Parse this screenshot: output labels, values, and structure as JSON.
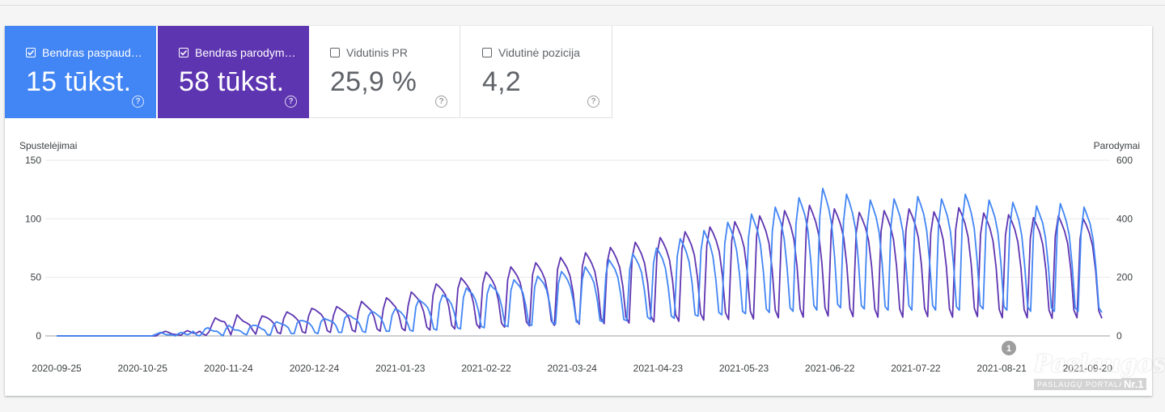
{
  "metrics": [
    {
      "label": "Bendras paspaud…",
      "value": "15 tūkst.",
      "checked": true,
      "color": "#4285f4"
    },
    {
      "label": "Bendras parodym…",
      "value": "58 tūkst.",
      "checked": true,
      "color": "#5e35b1"
    },
    {
      "label": "Vidutinis PR",
      "value": "25,9 %",
      "checked": false,
      "color": "#ffffff"
    },
    {
      "label": "Vidutinė pozicija",
      "value": "4,2",
      "checked": false,
      "color": "#ffffff"
    }
  ],
  "help_glyph": "?",
  "annotation": "1",
  "watermark": {
    "brand": "Paslaugos.lt",
    "tagline": "PASLAUGŲ PORTALAS",
    "rank": "Nr.1"
  },
  "chart_data": {
    "type": "line",
    "title": "",
    "ylabel_left": "Spustelėjimai",
    "ylabel_right": "Parodymai",
    "y_left_ticks": [
      0,
      50,
      100,
      150
    ],
    "y_right_ticks": [
      0,
      200,
      400,
      600
    ],
    "ylim_left": [
      0,
      150
    ],
    "ylim_right": [
      0,
      600
    ],
    "x_tick_labels": [
      "2020-09-25",
      "2020-10-25",
      "2020-11-24",
      "2020-12-24",
      "2021-01-23",
      "2021-02-22",
      "2021-03-24",
      "2021-04-23",
      "2021-05-23",
      "2021-06-22",
      "2021-07-22",
      "2021-08-21",
      "2021-09-20"
    ],
    "x_start": "2020-09-25",
    "x_end": "2021-09-25",
    "grid": true,
    "series": [
      {
        "name": "Bendras paspaud…",
        "axis": "left",
        "color": "#4285f4",
        "values": [
          0,
          0,
          0,
          0,
          0,
          0,
          0,
          0,
          0,
          0,
          0,
          0,
          0,
          0,
          0,
          0,
          0,
          0,
          0,
          0,
          0,
          0,
          0,
          0,
          0,
          0,
          0,
          0,
          0,
          0,
          0,
          0,
          0,
          1,
          2,
          3,
          2,
          1,
          1,
          1,
          0,
          2,
          3,
          2,
          1,
          2,
          4,
          1,
          0,
          2,
          6,
          7,
          5,
          4,
          4,
          2,
          0,
          6,
          9,
          7,
          5,
          5,
          4,
          2,
          1,
          7,
          9,
          9,
          8,
          6,
          5,
          1,
          1,
          9,
          12,
          11,
          10,
          9,
          7,
          2,
          2,
          11,
          13,
          13,
          12,
          11,
          8,
          3,
          2,
          12,
          15,
          14,
          13,
          12,
          9,
          3,
          3,
          15,
          18,
          17,
          15,
          14,
          10,
          4,
          3,
          17,
          21,
          20,
          18,
          16,
          11,
          4,
          4,
          18,
          23,
          22,
          20,
          17,
          12,
          5,
          4,
          25,
          31,
          29,
          27,
          24,
          17,
          6,
          5,
          28,
          35,
          33,
          31,
          27,
          19,
          7,
          6,
          33,
          41,
          38,
          36,
          31,
          22,
          8,
          7,
          36,
          44,
          41,
          39,
          34,
          24,
          9,
          8,
          39,
          48,
          45,
          42,
          37,
          26,
          10,
          9,
          42,
          51,
          48,
          45,
          39,
          28,
          11,
          10,
          45,
          55,
          52,
          48,
          42,
          30,
          12,
          11,
          48,
          59,
          55,
          51,
          45,
          32,
          13,
          12,
          53,
          65,
          61,
          57,
          50,
          35,
          14,
          13,
          57,
          70,
          66,
          61,
          54,
          38,
          16,
          14,
          62,
          75,
          71,
          66,
          58,
          41,
          17,
          15,
          68,
          83,
          78,
          72,
          63,
          45,
          18,
          17,
          73,
          90,
          84,
          78,
          68,
          48,
          20,
          18,
          79,
          97,
          91,
          84,
          73,
          52,
          21,
          19,
          84,
          104,
          97,
          90,
          78,
          55,
          23,
          20,
          89,
          110,
          103,
          96,
          83,
          58,
          24,
          21,
          96,
          118,
          111,
          103,
          90,
          63,
          26,
          22,
          102,
          126,
          118,
          109,
          95,
          67,
          27,
          24,
          98,
          121,
          114,
          105,
          92,
          64,
          26,
          23,
          94,
          116,
          109,
          101,
          88,
          62,
          25,
          22,
          95,
          117,
          110,
          102,
          89,
          62,
          26,
          22,
          97,
          119,
          112,
          104,
          90,
          63,
          26,
          22,
          95,
          117,
          110,
          102,
          89,
          62,
          25,
          22,
          98,
          121,
          114,
          105,
          92,
          64,
          26,
          23,
          94,
          116,
          109,
          101,
          88,
          62,
          25,
          22,
          93,
          114,
          107,
          99,
          86,
          60,
          25,
          21,
          90,
          111,
          104,
          97,
          84,
          59,
          24,
          21,
          92,
          113,
          106,
          98,
          86,
          60,
          24,
          21,
          89,
          110,
          103,
          96,
          83,
          58,
          24,
          20
        ]
      },
      {
        "name": "Bendras parodym…",
        "axis": "right",
        "color": "#5e35b1",
        "values": [
          0,
          0,
          0,
          0,
          0,
          0,
          0,
          0,
          0,
          0,
          0,
          0,
          0,
          0,
          0,
          0,
          0,
          0,
          0,
          0,
          0,
          0,
          0,
          0,
          0,
          0,
          0,
          0,
          0,
          0,
          0,
          0,
          0,
          8,
          12,
          16,
          12,
          7,
          5,
          4,
          2,
          12,
          18,
          14,
          9,
          10,
          16,
          7,
          2,
          14,
          40,
          62,
          55,
          50,
          48,
          28,
          4,
          38,
          72,
          60,
          50,
          45,
          38,
          20,
          6,
          42,
          68,
          65,
          60,
          52,
          40,
          12,
          8,
          60,
          82,
          76,
          70,
          60,
          48,
          14,
          10,
          68,
          94,
          90,
          82,
          74,
          58,
          18,
          12,
          70,
          100,
          94,
          86,
          78,
          60,
          20,
          14,
          82,
          118,
          108,
          98,
          88,
          66,
          24,
          16,
          92,
          130,
          122,
          110,
          98,
          72,
          26,
          18,
          104,
          150,
          140,
          128,
          112,
          82,
          30,
          20,
          140,
          178,
          168,
          156,
          140,
          104,
          36,
          24,
          162,
          198,
          186,
          172,
          154,
          112,
          40,
          26,
          178,
          218,
          206,
          190,
          168,
          122,
          44,
          30,
          192,
          236,
          222,
          206,
          182,
          132,
          48,
          34,
          210,
          250,
          236,
          218,
          192,
          140,
          52,
          36,
          226,
          268,
          252,
          234,
          206,
          150,
          56,
          40,
          238,
          284,
          268,
          248,
          220,
          160,
          60,
          42,
          252,
          302,
          286,
          264,
          234,
          170,
          64,
          44,
          268,
          320,
          302,
          280,
          248,
          180,
          68,
          48,
          280,
          336,
          318,
          294,
          260,
          188,
          72,
          50,
          296,
          356,
          336,
          312,
          276,
          200,
          76,
          54,
          310,
          372,
          352,
          326,
          288,
          208,
          80,
          56,
          324,
          390,
          368,
          342,
          302,
          218,
          84,
          58,
          340,
          410,
          386,
          358,
          316,
          228,
          88,
          62,
          354,
          428,
          404,
          374,
          330,
          238,
          92,
          64,
          370,
          446,
          420,
          390,
          344,
          248,
          96,
          68,
          360,
          434,
          410,
          380,
          336,
          242,
          94,
          66,
          350,
          422,
          398,
          370,
          326,
          236,
          92,
          64,
          356,
          428,
          404,
          374,
          330,
          238,
          92,
          64,
          360,
          434,
          410,
          380,
          336,
          242,
          94,
          66,
          352,
          424,
          400,
          372,
          328,
          236,
          92,
          64,
          364,
          438,
          414,
          384,
          338,
          244,
          94,
          66,
          348,
          420,
          396,
          368,
          324,
          234,
          90,
          62,
          344,
          414,
          392,
          364,
          320,
          230,
          90,
          62,
          334,
          404,
          380,
          354,
          312,
          226,
          88,
          60,
          340,
          410,
          386,
          358,
          316,
          228,
          88,
          62,
          332,
          400,
          378,
          350,
          308,
          222,
          86,
          60
        ]
      }
    ]
  }
}
